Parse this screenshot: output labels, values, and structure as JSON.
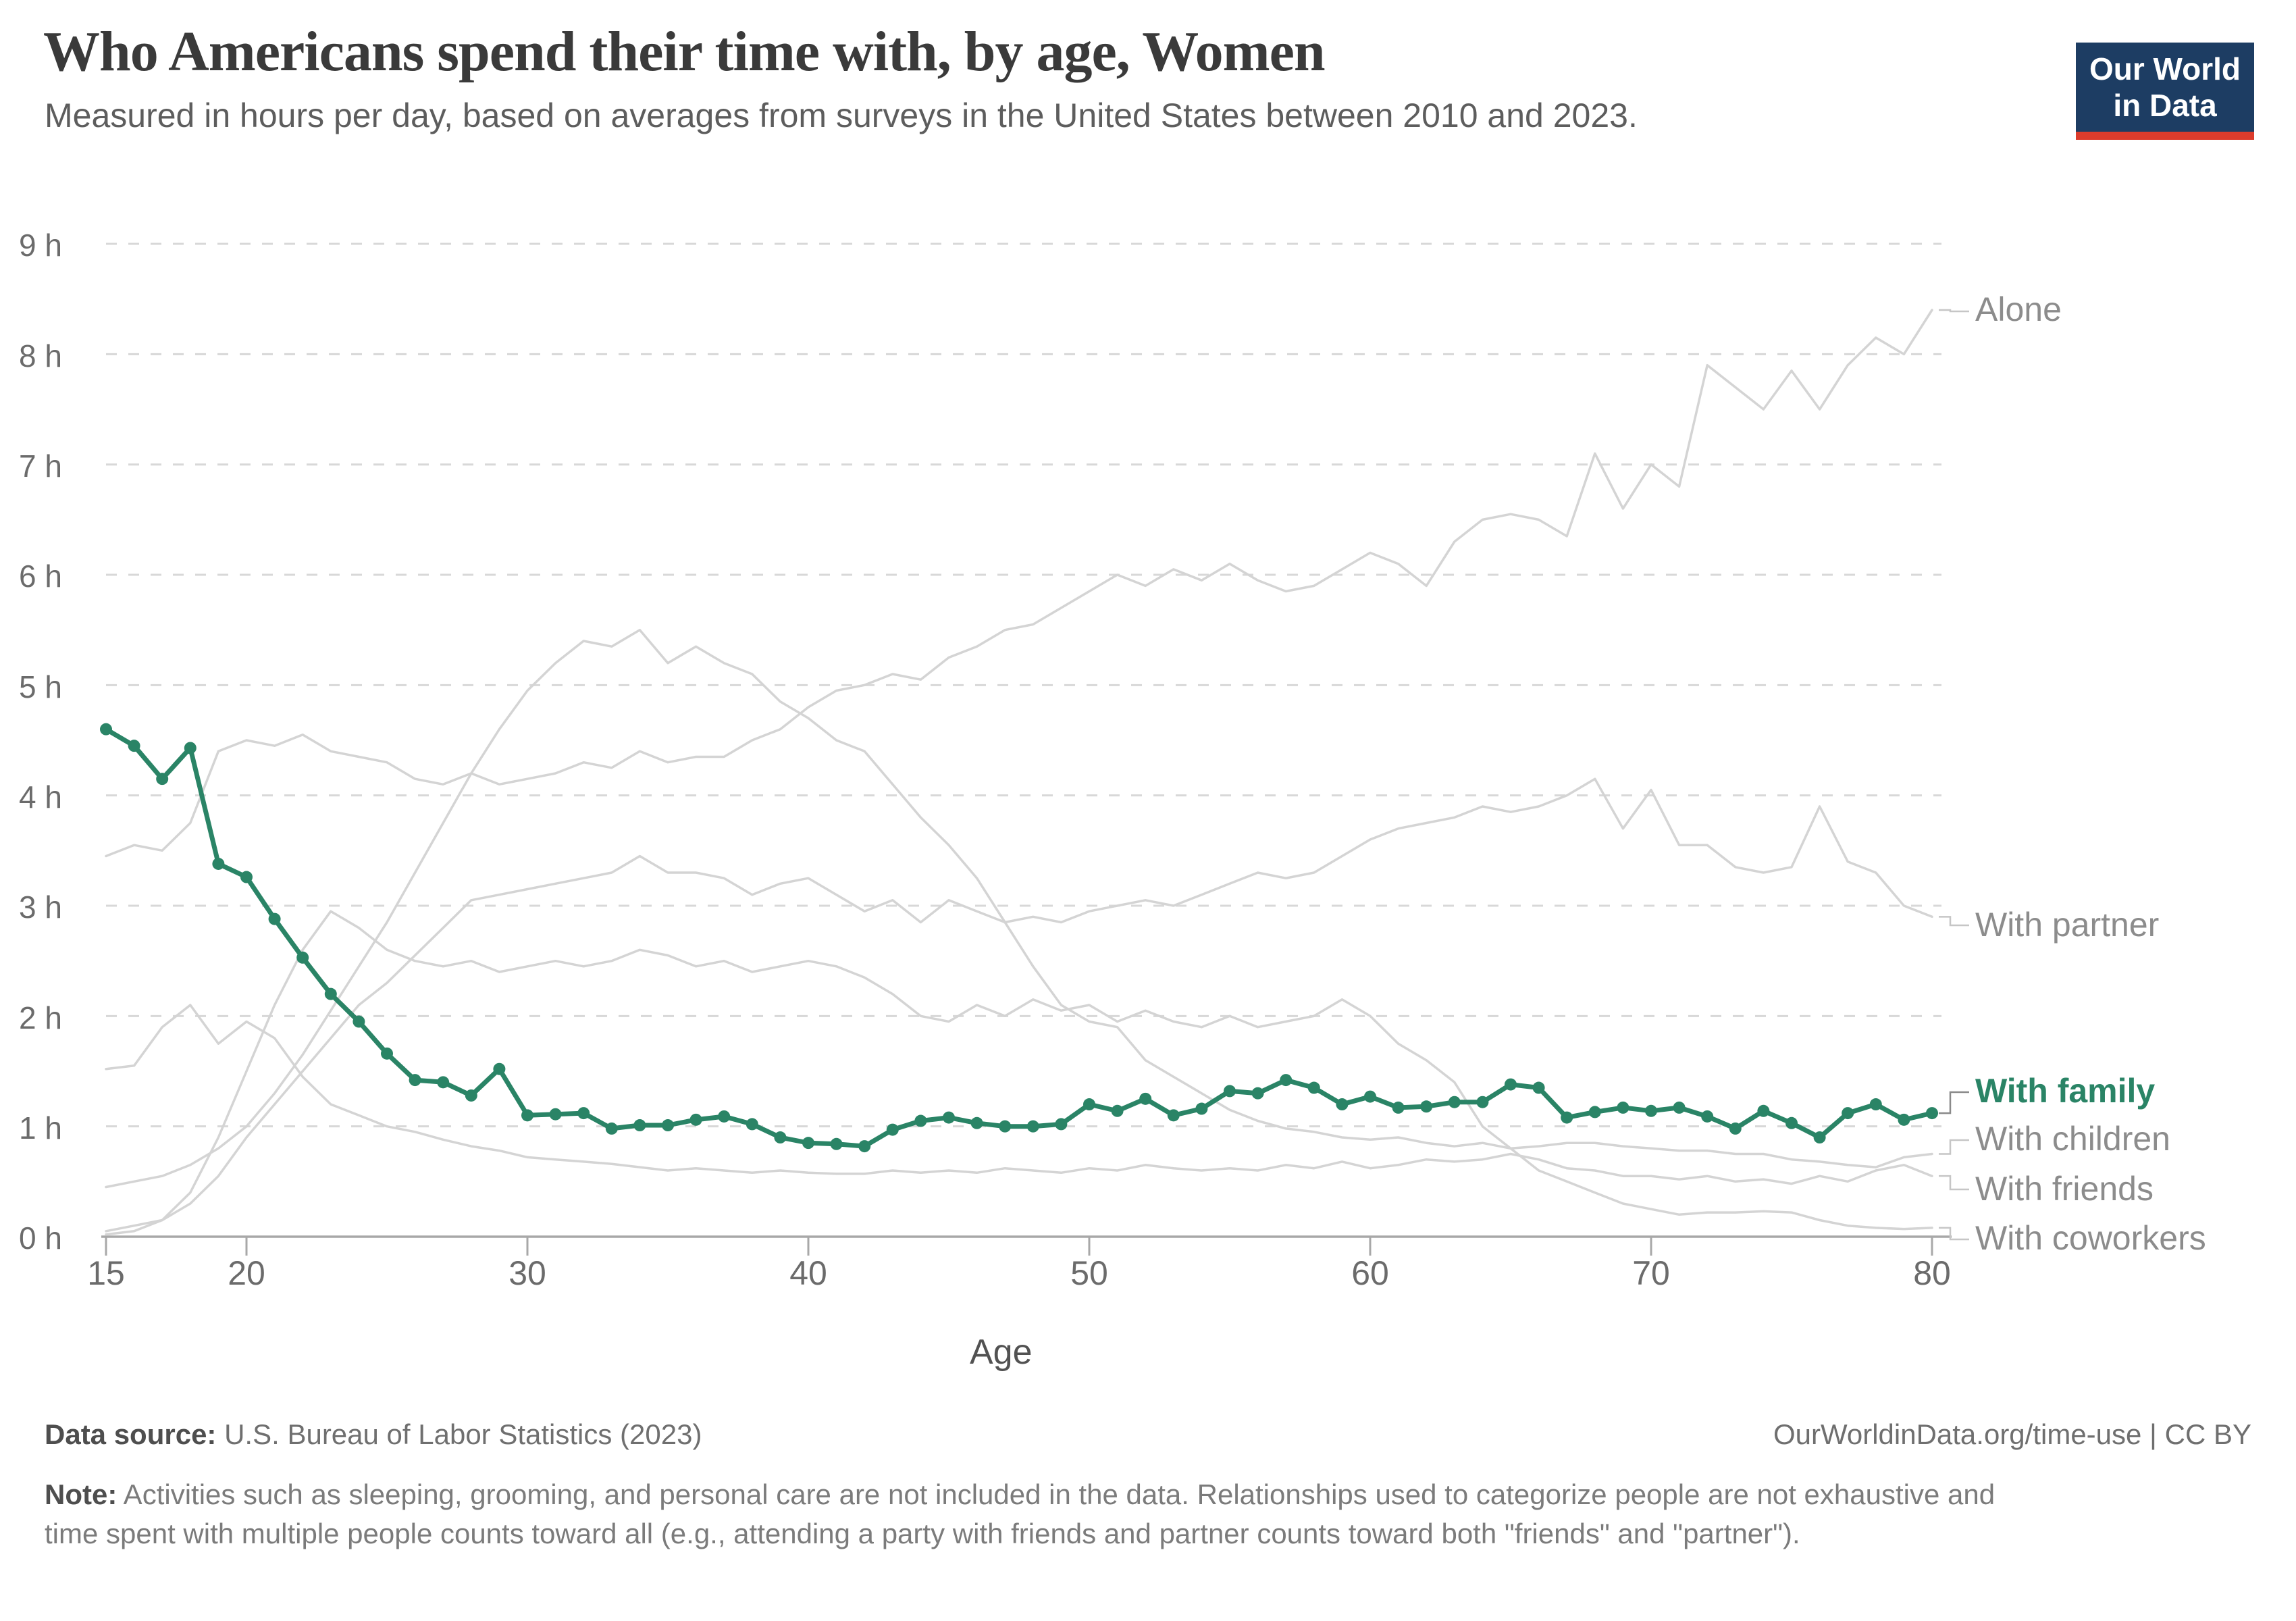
{
  "header": {
    "title": "Who Americans spend their time with, by age, Women",
    "subtitle": "Measured in hours per day, based on averages from surveys in the United States between 2010 and 2023."
  },
  "logo": {
    "line1": "Our World",
    "line2": "in Data",
    "bg_color": "#1d3d63",
    "bar_color": "#dc3c2c"
  },
  "chart_data": {
    "type": "line",
    "xlabel": "Age",
    "ylabel": "",
    "ylim": [
      0,
      9
    ],
    "xlim": [
      15,
      80
    ],
    "grid": "horizontal-dashed",
    "legend_position": "right-edge-labels",
    "ytick_labels": [
      "0 h",
      "1 h",
      "2 h",
      "3 h",
      "4 h",
      "5 h",
      "6 h",
      "7 h",
      "8 h",
      "9 h"
    ],
    "xticks": [
      15,
      20,
      30,
      40,
      50,
      60,
      70,
      80
    ],
    "x": [
      15,
      16,
      17,
      18,
      19,
      20,
      21,
      22,
      23,
      24,
      25,
      26,
      27,
      28,
      29,
      30,
      31,
      32,
      33,
      34,
      35,
      36,
      37,
      38,
      39,
      40,
      41,
      42,
      43,
      44,
      45,
      46,
      47,
      48,
      49,
      50,
      51,
      52,
      53,
      54,
      55,
      56,
      57,
      58,
      59,
      60,
      61,
      62,
      63,
      64,
      65,
      66,
      67,
      68,
      69,
      70,
      71,
      72,
      73,
      74,
      75,
      76,
      77,
      78,
      79,
      80
    ],
    "series": [
      {
        "name": "Alone",
        "color": "#d4d4d4",
        "highlight": false,
        "values": [
          3.45,
          3.55,
          3.5,
          3.75,
          4.4,
          4.5,
          4.45,
          4.55,
          4.4,
          4.35,
          4.3,
          4.15,
          4.1,
          4.2,
          4.1,
          4.15,
          4.2,
          4.3,
          4.25,
          4.4,
          4.3,
          4.35,
          4.35,
          4.5,
          4.6,
          4.8,
          4.95,
          5.0,
          5.1,
          5.05,
          5.25,
          5.35,
          5.5,
          5.55,
          5.7,
          5.85,
          6.0,
          5.9,
          6.05,
          5.95,
          6.1,
          5.95,
          5.85,
          5.9,
          6.05,
          6.2,
          6.1,
          5.9,
          6.3,
          6.5,
          6.55,
          6.5,
          6.35,
          7.1,
          6.6,
          7.0,
          6.8,
          7.9,
          7.7,
          7.5,
          7.85,
          7.5,
          7.9,
          8.15,
          8.0,
          8.4
        ]
      },
      {
        "name": "With partner",
        "color": "#d4d4d4",
        "highlight": false,
        "values": [
          0.05,
          0.1,
          0.15,
          0.3,
          0.55,
          0.9,
          1.2,
          1.5,
          1.8,
          2.1,
          2.3,
          2.55,
          2.8,
          3.05,
          3.1,
          3.15,
          3.2,
          3.25,
          3.3,
          3.45,
          3.3,
          3.3,
          3.25,
          3.1,
          3.2,
          3.25,
          3.1,
          2.95,
          3.05,
          2.85,
          3.05,
          2.95,
          2.85,
          2.9,
          2.85,
          2.95,
          3.0,
          3.05,
          3.0,
          3.1,
          3.2,
          3.3,
          3.25,
          3.3,
          3.45,
          3.6,
          3.7,
          3.75,
          3.8,
          3.9,
          3.85,
          3.9,
          4.0,
          4.15,
          3.7,
          4.05,
          3.55,
          3.55,
          3.35,
          3.3,
          3.35,
          3.9,
          3.4,
          3.3,
          3.0,
          2.9
        ]
      },
      {
        "name": "With family",
        "color": "#2a8466",
        "highlight": true,
        "values": [
          4.6,
          4.45,
          4.15,
          4.43,
          3.38,
          3.26,
          2.88,
          2.53,
          2.2,
          1.95,
          1.66,
          1.42,
          1.4,
          1.28,
          1.52,
          1.1,
          1.11,
          1.12,
          0.98,
          1.01,
          1.01,
          1.06,
          1.09,
          1.02,
          0.9,
          0.85,
          0.84,
          0.82,
          0.97,
          1.05,
          1.08,
          1.03,
          1.0,
          1.0,
          1.02,
          1.2,
          1.14,
          1.25,
          1.1,
          1.16,
          1.32,
          1.3,
          1.42,
          1.35,
          1.2,
          1.27,
          1.17,
          1.18,
          1.22,
          1.22,
          1.38,
          1.35,
          1.08,
          1.13,
          1.17,
          1.14,
          1.17,
          1.09,
          0.98,
          1.14,
          1.03,
          0.9,
          1.12,
          1.2,
          1.06,
          1.12
        ]
      },
      {
        "name": "With children",
        "color": "#d4d4d4",
        "highlight": false,
        "values": [
          0.45,
          0.5,
          0.55,
          0.65,
          0.8,
          1.0,
          1.3,
          1.65,
          2.05,
          2.45,
          2.85,
          3.3,
          3.75,
          4.2,
          4.6,
          4.95,
          5.2,
          5.4,
          5.35,
          5.5,
          5.2,
          5.35,
          5.2,
          5.1,
          4.85,
          4.7,
          4.5,
          4.4,
          4.1,
          3.8,
          3.55,
          3.25,
          2.85,
          2.45,
          2.1,
          1.95,
          1.9,
          1.6,
          1.45,
          1.3,
          1.15,
          1.05,
          0.98,
          0.95,
          0.9,
          0.88,
          0.9,
          0.85,
          0.82,
          0.85,
          0.8,
          0.82,
          0.85,
          0.85,
          0.82,
          0.8,
          0.78,
          0.78,
          0.75,
          0.75,
          0.7,
          0.68,
          0.65,
          0.63,
          0.72,
          0.75
        ]
      },
      {
        "name": "With friends",
        "color": "#d4d4d4",
        "highlight": false,
        "values": [
          1.52,
          1.55,
          1.9,
          2.1,
          1.75,
          1.95,
          1.8,
          1.45,
          1.2,
          1.1,
          1.0,
          0.95,
          0.88,
          0.82,
          0.78,
          0.72,
          0.7,
          0.68,
          0.66,
          0.63,
          0.6,
          0.62,
          0.6,
          0.58,
          0.6,
          0.58,
          0.57,
          0.57,
          0.6,
          0.58,
          0.6,
          0.58,
          0.62,
          0.6,
          0.58,
          0.62,
          0.6,
          0.65,
          0.62,
          0.6,
          0.62,
          0.6,
          0.65,
          0.62,
          0.68,
          0.62,
          0.65,
          0.7,
          0.68,
          0.7,
          0.75,
          0.7,
          0.62,
          0.6,
          0.55,
          0.55,
          0.52,
          0.55,
          0.5,
          0.52,
          0.48,
          0.55,
          0.5,
          0.6,
          0.65,
          0.55
        ]
      },
      {
        "name": "With coworkers",
        "color": "#d4d4d4",
        "highlight": false,
        "values": [
          0.02,
          0.05,
          0.15,
          0.4,
          0.9,
          1.5,
          2.1,
          2.6,
          2.95,
          2.8,
          2.6,
          2.5,
          2.45,
          2.5,
          2.4,
          2.45,
          2.5,
          2.45,
          2.5,
          2.6,
          2.55,
          2.45,
          2.5,
          2.4,
          2.45,
          2.5,
          2.45,
          2.35,
          2.2,
          2.0,
          1.95,
          2.1,
          2.0,
          2.15,
          2.05,
          2.1,
          1.95,
          2.05,
          1.95,
          1.9,
          2.0,
          1.9,
          1.95,
          2.0,
          2.15,
          2.0,
          1.75,
          1.6,
          1.4,
          1.0,
          0.8,
          0.6,
          0.5,
          0.4,
          0.3,
          0.25,
          0.2,
          0.22,
          0.22,
          0.23,
          0.22,
          0.15,
          0.1,
          0.08,
          0.07,
          0.08
        ]
      }
    ],
    "title": "Who Americans spend their time with, by age, Women",
    "accent_color": "#2a8466",
    "gridline_color": "#d8d8d8",
    "axis_color": "#a8a8a8"
  },
  "footer": {
    "data_source_label": "Data source:",
    "data_source_text": " U.S. Bureau of Labor Statistics (2023)",
    "link_text": "OurWorldinData.org/time-use | CC BY",
    "note_label": "Note:",
    "note_text": " Activities such as sleeping, grooming, and personal care are not included in the data. Relationships used to categorize people are not exhaustive and time spent with multiple people counts toward all (e.g., attending a party with friends and partner counts toward both \"friends\" and \"partner\")."
  }
}
